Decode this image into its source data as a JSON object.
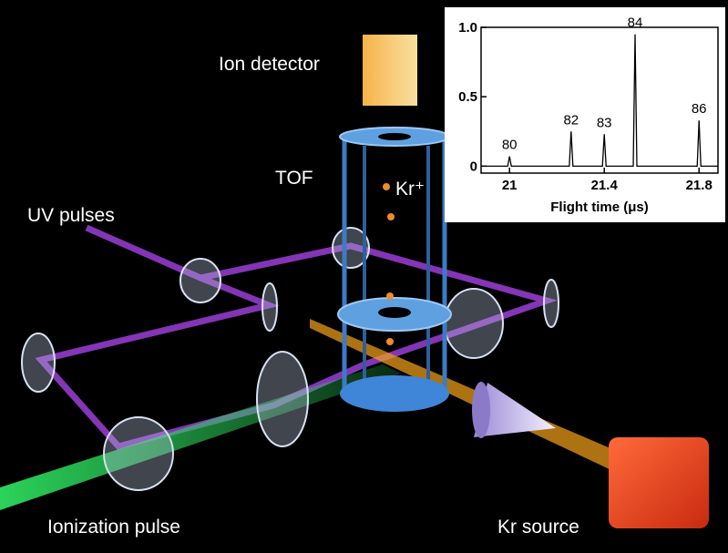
{
  "labels": {
    "ion_detector": "Ion detector",
    "tof": "TOF",
    "kr_ion": "Kr⁺",
    "uv_pulses": "UV pulses",
    "ionization_pulse": "Ionization pulse",
    "kr_source": "Kr source"
  },
  "inset": {
    "type": "line",
    "x_label": "Flight time (μs)",
    "xlim": [
      20.88,
      21.88
    ],
    "xticks": [
      21,
      21.4,
      21.8
    ],
    "ylim": [
      -0.05,
      1.0
    ],
    "yticks": [
      0,
      0.5,
      {
        "value": 1,
        "label": "1.0"
      }
    ],
    "peaks": {
      "labels": [
        "80",
        "82",
        "83",
        "84",
        "86"
      ],
      "x": [
        21.0,
        21.26,
        21.4,
        21.53,
        21.8
      ],
      "values": [
        0.07,
        0.25,
        0.23,
        0.95,
        0.33
      ]
    }
  }
}
